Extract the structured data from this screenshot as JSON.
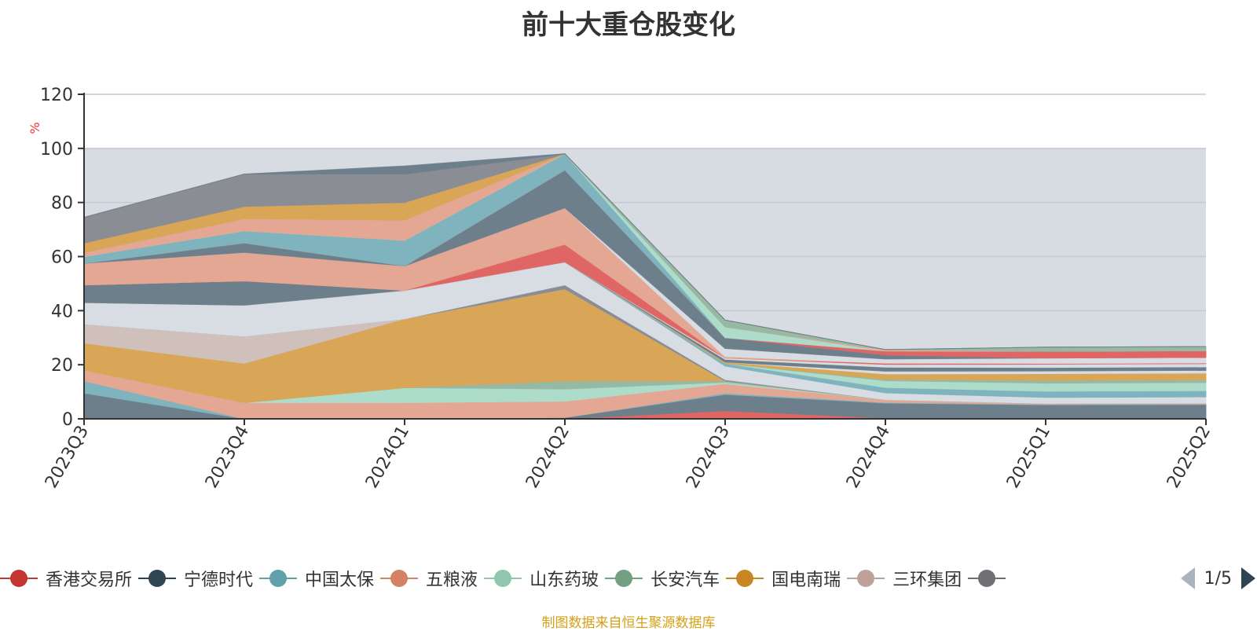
{
  "title": "前十大重仓股变化",
  "source_note": "制图数据来自恒生聚源数据库",
  "pager": {
    "text": "1/5"
  },
  "legend": [
    {
      "name": "香港交易所",
      "color": "#c23531"
    },
    {
      "name": "宁德时代",
      "color": "#2f4554"
    },
    {
      "name": "中国太保",
      "color": "#61a0a8"
    },
    {
      "name": "五粮液",
      "color": "#d48265"
    },
    {
      "name": "山东药玻",
      "color": "#91c7ae"
    },
    {
      "name": "长安汽车",
      "color": "#749f83"
    },
    {
      "name": "国电南瑞",
      "color": "#ca8622"
    },
    {
      "name": "三环集团",
      "color": "#bda29a"
    },
    {
      "name": "",
      "color": "#6e7074"
    }
  ],
  "chart_data": {
    "type": "area",
    "title": "前十大重仓股变化",
    "ylabel": "%",
    "ylim": [
      0,
      120
    ],
    "yticks": [
      "0",
      "20",
      "40",
      "60",
      "80",
      "100",
      "120"
    ],
    "categories": [
      "2023Q3",
      "2023Q4",
      "2024Q1",
      "2024Q2",
      "2024Q3",
      "2024Q4",
      "2025Q1",
      "2025Q2"
    ],
    "background_band": [
      0,
      100
    ],
    "stacked": true,
    "bands": [
      {
        "color": "#e06666",
        "values": [
          0,
          0,
          0,
          0,
          3.0,
          0.3,
          0,
          0
        ]
      },
      {
        "color": "#6e7f8c",
        "values": [
          9.5,
          0,
          0,
          0.5,
          6.0,
          5.5,
          5.2,
          5.3
        ]
      },
      {
        "color": "#7fb3bd",
        "values": [
          4.5,
          0,
          0,
          0,
          0.5,
          0.3,
          0.2,
          0.2
        ]
      },
      {
        "color": "#e3a794",
        "values": [
          4.0,
          6.0,
          6.0,
          6.0,
          3.5,
          1.0,
          0.3,
          0.3
        ]
      },
      {
        "color": "#aedccb",
        "values": [
          0,
          0,
          5.5,
          4.5,
          0.5,
          0,
          0,
          0
        ]
      },
      {
        "color": "#96b9a4",
        "values": [
          0,
          0,
          0,
          3.0,
          0.5,
          0,
          0,
          0
        ]
      },
      {
        "color": "#d9a657",
        "values": [
          10.0,
          14.5,
          25.5,
          34.0,
          0,
          0,
          0,
          0
        ]
      },
      {
        "color": "#cfc0bc",
        "values": [
          7.0,
          10.0,
          0,
          0,
          0,
          0,
          0,
          0
        ]
      },
      {
        "color": "#8a8d93",
        "values": [
          0,
          0,
          0,
          1.5,
          0.5,
          0,
          0,
          0
        ]
      },
      {
        "color": "#d8dde3",
        "values": [
          8.0,
          11.5,
          10.5,
          8.5,
          5.0,
          2.5,
          2.2,
          2.3
        ]
      },
      {
        "color": "#7fb3bd",
        "values": [
          0,
          0,
          0,
          0,
          1.0,
          2.0,
          2.3,
          2.3
        ]
      },
      {
        "color": "#aedccb",
        "values": [
          0,
          0,
          0,
          0,
          0,
          2.5,
          3.0,
          3.0
        ]
      },
      {
        "color": "#96b9a4",
        "values": [
          0,
          0,
          0,
          0,
          0,
          0.5,
          1.0,
          1.0
        ]
      },
      {
        "color": "#d9a657",
        "values": [
          0,
          0,
          0,
          0,
          0.5,
          2.0,
          2.5,
          2.5
        ]
      },
      {
        "color": "#d8dde3",
        "values": [
          0,
          0,
          0,
          0,
          0,
          1.0,
          1.0,
          1.0
        ]
      },
      {
        "color": "#6e7f8c",
        "values": [
          6.5,
          9.0,
          0,
          0,
          1.0,
          1.5,
          1.3,
          1.3
        ]
      },
      {
        "color": "#d8dde3",
        "values": [
          0,
          0,
          0,
          0,
          0.5,
          1.0,
          1.2,
          1.2
        ]
      },
      {
        "color": "#e06666",
        "values": [
          0,
          0,
          0,
          6.5,
          0,
          0.5,
          0.3,
          0.3
        ]
      },
      {
        "color": "#e3a794",
        "values": [
          8.0,
          10.5,
          9.0,
          13.5,
          0.5,
          0,
          0,
          0
        ]
      },
      {
        "color": "#d8dde3",
        "values": [
          0,
          0,
          0,
          0,
          3.0,
          1.5,
          2.0,
          2.0
        ]
      },
      {
        "color": "#6e7f8c",
        "values": [
          0,
          3.5,
          0,
          14.0,
          4.0,
          1.5,
          0,
          0
        ]
      },
      {
        "color": "#e06666",
        "values": [
          0,
          0,
          0,
          0,
          0,
          1.5,
          2.5,
          2.5
        ]
      },
      {
        "color": "#7fb3bd",
        "values": [
          2.5,
          4.5,
          9.5,
          6.0,
          0,
          0,
          0,
          0
        ]
      },
      {
        "color": "#aedccb",
        "values": [
          0,
          0,
          0,
          0,
          4.0,
          0,
          0,
          0
        ]
      },
      {
        "color": "#e3a794",
        "values": [
          1.5,
          4.5,
          7.5,
          0,
          0,
          0.5,
          0,
          0
        ]
      },
      {
        "color": "#96b9a4",
        "values": [
          0,
          0,
          0,
          0,
          2.5,
          0,
          1.5,
          1.5
        ]
      },
      {
        "color": "#d9a657",
        "values": [
          3.5,
          4.5,
          6.5,
          0,
          0,
          0,
          0,
          0
        ]
      },
      {
        "color": "#a2a5aa",
        "values": [
          0,
          0,
          0,
          0,
          0,
          0,
          0,
          0
        ]
      },
      {
        "color": "#8a8d93",
        "values": [
          9.5,
          12.0,
          10.5,
          0,
          0,
          0,
          0,
          0
        ]
      },
      {
        "color": "#6e7f8c",
        "values": [
          0,
          0,
          3.0,
          0,
          0,
          0,
          0,
          0
        ]
      }
    ]
  }
}
